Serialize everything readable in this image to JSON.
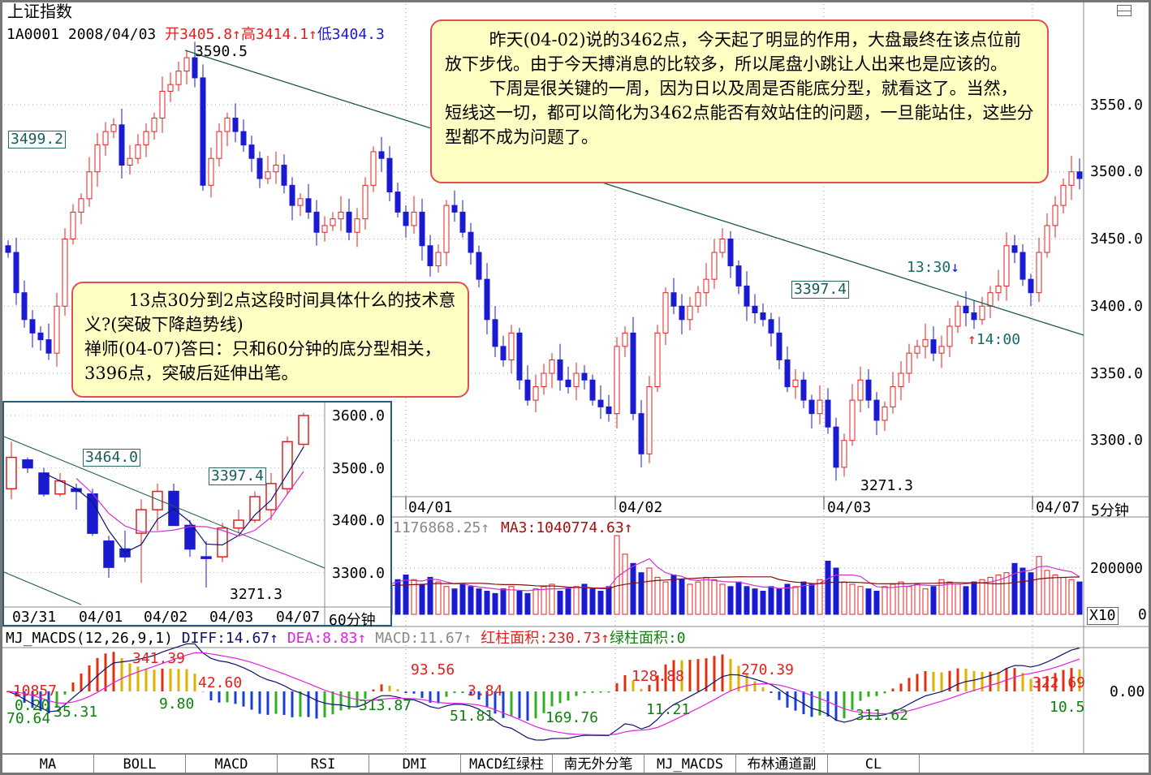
{
  "header": {
    "title": "上证指数",
    "code": "1A0001",
    "date": "2008/04/03",
    "open": "开3405.8↑",
    "high": "高3414.1↑",
    "low": "低3404.3"
  },
  "colors": {
    "up": "#e02020",
    "down": "#1a1ad0",
    "ma_line": "#cc33cc",
    "trend": "#1a5a4a",
    "note_bg": "#ffffc4",
    "note_border": "#e05050"
  },
  "notes": {
    "top": [
      "昨天(04-02)说的3462点，今天起了明显的作用，大盘最终在该点位前放下步伐。由于今天搏消息的比较多，所以尾盘小跳让人出来也是应该的。",
      "下周是很关键的一周，因为日以及周是否能底分型，就看这了。当然，短线这一切，都可以简化为3462点能否有效站住的问题，一旦能站住，这些分型都不成为问题了。"
    ],
    "left": [
      "13点30分到2点这段时间具体什么的技术意义?(突破下降趋势线)",
      "禅师(04-07)答曰：只和60分钟的底分型相关，3396点，突破后延伸出笔。"
    ]
  },
  "main": {
    "labels": {
      "peak": "3590.5",
      "box1": "3499.2",
      "box2": "3397.4",
      "t1330": "13:30",
      "t1400": "14:00",
      "low": "3271.3"
    },
    "price_ticks": [
      "3550.0",
      "3500.0",
      "3450.0",
      "3400.0",
      "3350.0",
      "3300.0"
    ],
    "dates": [
      "04/01",
      "04/02",
      "04/03",
      "04/07"
    ],
    "period": "5分钟"
  },
  "volume": {
    "last": "1176868.25↑",
    "ma3": "MA3:1040774.63↑",
    "tick": "200000",
    "unit": "X10",
    "zero": "0"
  },
  "macd": {
    "title": "MJ_MACDS(12,26,9,1)",
    "diff": "DIFF:14.67↑",
    "dea": "DEA:8.83↑",
    "macd": "MACD:11.67↑",
    "red_area": "红柱面积:230.73↑",
    "green_area": "绿柱面积:0",
    "zero": "0.00",
    "annotations": [
      "-10857",
      "0.20",
      "70.64",
      "35.31",
      "341.39",
      "9.80",
      "42.60",
      "93.56",
      "313.87",
      "3.84",
      "51.81",
      "169.76",
      "128.88",
      "11.21",
      "270.39",
      "311.62",
      "322.69",
      "10.5"
    ]
  },
  "inset": {
    "price_ticks": [
      "3600.0",
      "3500.0",
      "3400.0",
      "3300.0"
    ],
    "dates": [
      "03/31",
      "04/01",
      "04/02",
      "04/03",
      "04/07"
    ],
    "period": "60分钟",
    "labels": {
      "box1": "3464.0",
      "box2": "3397.4",
      "low": "3271.3"
    }
  },
  "tabs": [
    "MA",
    "BOLL",
    "MACD",
    "RSI",
    "DMI",
    "MACD红绿柱",
    "南无外分笔",
    "MJ_MACDS",
    "布林通道副",
    "CL",
    ""
  ],
  "chart_data": {
    "type": "candlestick",
    "main_5min_closes": [
      3440,
      3410,
      3390,
      3380,
      3375,
      3365,
      3400,
      3450,
      3470,
      3480,
      3500,
      3520,
      3530,
      3535,
      3505,
      3510,
      3520,
      3530,
      3540,
      3560,
      3565,
      3575,
      3585,
      3570,
      3490,
      3510,
      3530,
      3540,
      3530,
      3520,
      3510,
      3495,
      3500,
      3505,
      3490,
      3475,
      3480,
      3470,
      3455,
      3460,
      3465,
      3470,
      3455,
      3465,
      3490,
      3515,
      3510,
      3485,
      3470,
      3460,
      3470,
      3445,
      3430,
      3440,
      3475,
      3470,
      3455,
      3440,
      3420,
      3390,
      3370,
      3360,
      3380,
      3345,
      3330,
      3340,
      3350,
      3360,
      3345,
      3340,
      3350,
      3345,
      3330,
      3325,
      3320,
      3370,
      3380,
      3320,
      3290,
      3340,
      3380,
      3410,
      3400,
      3390,
      3400,
      3410,
      3420,
      3440,
      3450,
      3430,
      3415,
      3400,
      3395,
      3390,
      3380,
      3360,
      3340,
      3345,
      3330,
      3320,
      3330,
      3310,
      3280,
      3300,
      3330,
      3345,
      3330,
      3315,
      3325,
      3340,
      3350,
      3365,
      3370,
      3375,
      3365,
      3370,
      3385,
      3400,
      3395,
      3390,
      3400,
      3410,
      3415,
      3445,
      3440,
      3420,
      3410,
      3440,
      3460,
      3475,
      3490,
      3500,
      3495
    ],
    "main_ylim": [
      3260,
      3600
    ],
    "volume_x10": [
      150000,
      120000,
      110000,
      130000,
      100000,
      140000,
      160000,
      150000,
      120000,
      110000,
      130000,
      150000,
      170000,
      140000,
      120000,
      110000,
      130000,
      140000,
      160000,
      150000,
      130000,
      120000,
      170000,
      150000,
      140000,
      120000,
      110000,
      130000,
      150000,
      140000,
      120000,
      110000,
      100000,
      130000,
      120000,
      110000,
      100000,
      120000,
      110000,
      130000,
      150000,
      140000,
      120000,
      110000,
      130000,
      160000,
      140000,
      120000,
      150000,
      170000,
      150000,
      130000,
      160000,
      140000,
      120000,
      110000,
      130000,
      120000,
      110000,
      100000,
      90000,
      110000,
      120000,
      100000,
      90000,
      110000,
      120000,
      130000,
      100000,
      110000,
      120000,
      130000,
      110000,
      100000,
      120000,
      340000,
      260000,
      220000,
      180000,
      200000,
      160000,
      140000,
      170000,
      150000,
      130000,
      140000,
      160000,
      150000,
      130000,
      120000,
      140000,
      120000,
      110000,
      100000,
      120000,
      110000,
      130000,
      120000,
      140000,
      130000,
      150000,
      230000,
      200000,
      140000,
      130000,
      120000,
      110000,
      100000,
      120000,
      130000,
      140000,
      120000,
      130000,
      110000,
      120000,
      150000,
      140000,
      130000,
      120000,
      140000,
      150000,
      160000,
      170000,
      180000,
      220000,
      200000,
      180000,
      250000,
      190000,
      170000,
      160000,
      150000,
      140000
    ],
    "inset_60min_ohlc": [
      [
        3460,
        3520,
        3550,
        3440
      ],
      [
        3515,
        3500,
        3520,
        3490
      ],
      [
        3490,
        3450,
        3500,
        3445
      ],
      [
        3450,
        3475,
        3490,
        3445
      ],
      [
        3460,
        3455,
        3470,
        3420
      ],
      [
        3450,
        3375,
        3460,
        3370
      ],
      [
        3360,
        3310,
        3370,
        3290
      ],
      [
        3345,
        3330,
        3380,
        3320
      ],
      [
        3375,
        3420,
        3440,
        3280
      ],
      [
        3420,
        3455,
        3470,
        3380
      ],
      [
        3455,
        3390,
        3470,
        3390
      ],
      [
        3390,
        3345,
        3400,
        3330
      ],
      [
        3330,
        3328,
        3360,
        3271.3
      ],
      [
        3330,
        3385,
        3395,
        3320
      ],
      [
        3385,
        3400,
        3420,
        3375
      ],
      [
        3400,
        3445,
        3455,
        3395
      ],
      [
        3420,
        3470,
        3490,
        3400
      ],
      [
        3460,
        3550,
        3560,
        3450
      ],
      [
        3545,
        3600,
        3605,
        3540
      ]
    ],
    "inset_ylim": [
      3250,
      3620
    ],
    "macd_params": [
      12,
      26,
      9
    ]
  }
}
